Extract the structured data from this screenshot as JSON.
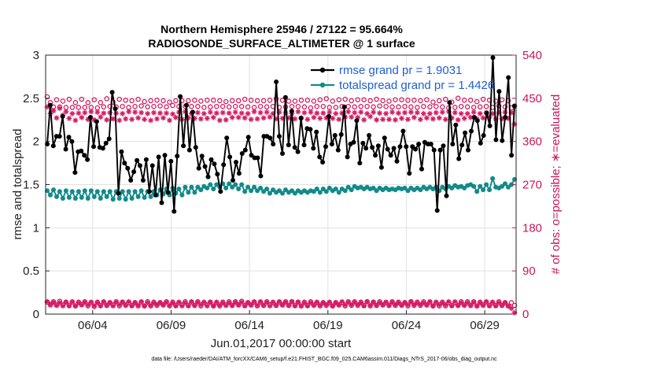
{
  "colors": {
    "rmse": "#000000",
    "spread": "#128a8a",
    "obs": "#d41d63",
    "legend_text": "#1f5fd0",
    "grid": "#e1e1e1",
    "right_axis": "#c8175d"
  },
  "chart_data": {
    "type": "line",
    "title": "Northern Hemisphere 25946 / 27122 = 95.664%",
    "subtitle": "RADIOSONDE_SURFACE_ALTIMETER @ 1 surface",
    "ylabel": "rmse and totalspread",
    "y2label": "# of obs: o=possible; ∗=evaluated",
    "xlabel": "Jun.01,2017 00:00:00 start",
    "ylim": [
      0,
      3
    ],
    "y2lim": [
      0,
      540
    ],
    "xlim": [
      1,
      31
    ],
    "yticks": [
      "0",
      "0.5",
      "1",
      "1.5",
      "2",
      "2.5",
      "3"
    ],
    "y2ticks": [
      "0",
      "90",
      "180",
      "270",
      "360",
      "450",
      "540"
    ],
    "xtick_labels": [
      "06/04",
      "06/09",
      "06/14",
      "06/19",
      "06/24",
      "06/29"
    ],
    "grid": true,
    "legend_position": "top-right",
    "legend": [
      "rmse grand pr = 1.9031",
      "totalspread grand pr = 1.4426"
    ],
    "footer": "data file: /Users/raeder/DAI/ATM_forcXX/CAM6_setup/f.e21.FHIST_BGC.f09_025.CAM6assim.011/Diags_NTrS_2017-06/obs_diag_output.nc",
    "series": [
      {
        "name": "rmse",
        "axis": "left",
        "values": [
          1.97,
          2.42,
          1.95,
          2.06,
          2.06,
          2.29,
          1.91,
          2.05,
          2.0,
          1.64,
          1.88,
          1.89,
          1.84,
          1.79,
          2.28,
          1.94,
          2.23,
          1.93,
          1.92,
          1.98,
          2.03,
          2.57,
          2.38,
          1.4,
          1.88,
          1.75,
          1.69,
          1.55,
          1.65,
          1.78,
          1.72,
          1.55,
          1.79,
          1.42,
          1.72,
          1.38,
          1.82,
          1.29,
          1.84,
          1.41,
          1.77,
          1.19,
          1.83,
          2.52,
          1.95,
          2.42,
          1.9,
          2.34,
          1.93,
          1.69,
          1.83,
          1.71,
          1.59,
          1.79,
          1.74,
          1.62,
          1.42,
          1.73,
          2.04,
          1.82,
          1.55,
          1.76,
          1.63,
          1.86,
          1.9,
          2.05,
          1.84,
          1.81,
          1.81,
          1.6,
          2.06,
          2.06,
          2.04,
          1.97,
          2.69,
          2.06,
          1.86,
          2.51,
          1.96,
          2.35,
          1.93,
          1.88,
          2.27,
          1.96,
          2.15,
          2.14,
          1.92,
          2.11,
          1.82,
          1.76,
          1.94,
          2.29,
          1.97,
          2.07,
          1.9,
          2.08,
          2.4,
          1.82,
          1.97,
          1.99,
          2.24,
          1.75,
          1.98,
          1.92,
          2.07,
          1.93,
          1.84,
          1.95,
          1.7,
          2.04,
          1.91,
          1.84,
          1.92,
          1.77,
          1.94,
          2.12,
          1.94,
          1.63,
          1.94,
          1.91,
          1.97,
          1.68,
          1.99,
          1.97,
          1.97,
          1.9,
          1.2,
          1.9,
          1.95,
          1.37,
          2.45,
          1.97,
          2.19,
          1.8,
          1.96,
          2.1,
          1.9,
          2.12,
          2.28,
          2.24,
          1.98,
          2.07,
          2.33,
          2.18,
          2.97,
          2.02,
          2.58,
          2.01,
          2.28,
          2.74,
          1.84,
          2.41
        ]
      },
      {
        "name": "totalspread",
        "axis": "left",
        "values": [
          1.43,
          1.38,
          1.44,
          1.36,
          1.42,
          1.34,
          1.43,
          1.35,
          1.42,
          1.34,
          1.42,
          1.35,
          1.43,
          1.34,
          1.43,
          1.36,
          1.42,
          1.34,
          1.42,
          1.36,
          1.42,
          1.33,
          1.42,
          1.34,
          1.42,
          1.33,
          1.42,
          1.34,
          1.42,
          1.36,
          1.43,
          1.35,
          1.42,
          1.36,
          1.42,
          1.38,
          1.44,
          1.39,
          1.45,
          1.38,
          1.46,
          1.4,
          1.45,
          1.38,
          1.47,
          1.41,
          1.47,
          1.41,
          1.47,
          1.44,
          1.48,
          1.46,
          1.5,
          1.45,
          1.5,
          1.47,
          1.51,
          1.46,
          1.51,
          1.47,
          1.5,
          1.45,
          1.5,
          1.42,
          1.47,
          1.43,
          1.47,
          1.43,
          1.46,
          1.42,
          1.45,
          1.4,
          1.44,
          1.41,
          1.43,
          1.4,
          1.44,
          1.41,
          1.43,
          1.4,
          1.43,
          1.41,
          1.43,
          1.41,
          1.43,
          1.42,
          1.45,
          1.41,
          1.45,
          1.42,
          1.46,
          1.43,
          1.45,
          1.41,
          1.45,
          1.43,
          1.47,
          1.44,
          1.48,
          1.46,
          1.47,
          1.45,
          1.47,
          1.45,
          1.46,
          1.43,
          1.46,
          1.44,
          1.46,
          1.44,
          1.45,
          1.44,
          1.46,
          1.45,
          1.46,
          1.43,
          1.46,
          1.44,
          1.46,
          1.44,
          1.47,
          1.45,
          1.47,
          1.45,
          1.47,
          1.43,
          1.47,
          1.45,
          1.48,
          1.46,
          1.49,
          1.47,
          1.48,
          1.46,
          1.49,
          1.5,
          1.48,
          1.42,
          1.48,
          1.44,
          1.5,
          1.44,
          1.57,
          1.47,
          1.46,
          1.48,
          1.51,
          1.47,
          1.5,
          1.56
        ]
      },
      {
        "name": "obs possible",
        "axis": "right",
        "values": [
          453,
          441,
          432,
          447,
          432,
          444,
          431,
          448,
          431,
          441,
          431,
          448,
          431,
          441,
          431,
          447,
          430,
          441,
          432,
          449,
          433,
          442,
          432,
          448,
          433,
          446,
          431,
          445,
          433,
          448,
          434,
          443,
          432,
          445,
          433,
          446,
          434,
          445,
          432,
          442,
          435,
          445,
          433,
          445,
          433,
          445,
          433,
          446,
          433,
          444,
          431,
          446,
          432,
          446,
          433,
          445,
          433,
          443,
          432,
          445,
          433,
          445,
          433,
          448,
          432,
          446,
          431,
          445,
          433,
          445,
          432,
          446,
          433,
          449,
          431,
          446,
          432,
          444,
          433,
          444,
          433,
          446,
          432,
          446,
          430,
          444,
          433,
          447,
          433,
          449,
          431,
          444,
          431,
          447,
          433,
          448,
          433,
          445,
          432,
          447,
          433,
          447,
          433,
          445,
          432,
          448,
          434,
          445,
          433,
          444,
          432,
          447,
          432,
          447,
          433,
          446,
          432,
          446,
          431,
          445,
          433,
          447,
          432,
          442,
          433,
          445,
          432,
          448,
          430,
          442,
          431,
          450,
          433,
          446,
          432,
          446,
          431,
          443,
          432,
          448,
          433,
          446,
          431,
          444,
          434,
          447,
          432,
          445,
          430,
          434
        ]
      },
      {
        "name": "obs evaluated",
        "axis": "right",
        "values": [
          432,
          418,
          424,
          409,
          429,
          415,
          422,
          408,
          418,
          404,
          419,
          410,
          420,
          406,
          422,
          405,
          421,
          411,
          419,
          405,
          420,
          407,
          419,
          404,
          418,
          407,
          422,
          406,
          421,
          409,
          420,
          406,
          418,
          404,
          420,
          407,
          419,
          409,
          419,
          404,
          417,
          410,
          421,
          406,
          422,
          409,
          418,
          408,
          420,
          407,
          418,
          408,
          421,
          410,
          419,
          404,
          420,
          405,
          419,
          410,
          421,
          410,
          419,
          409,
          418,
          406,
          422,
          407,
          420,
          409,
          421,
          411,
          418,
          407,
          421,
          408,
          420,
          409,
          418,
          407,
          422,
          409,
          420,
          406,
          421,
          410,
          419,
          408,
          419,
          409,
          421,
          408,
          418,
          406,
          419,
          411,
          422,
          411,
          420,
          410,
          421,
          405,
          418,
          412,
          421,
          405,
          419,
          406,
          418,
          406,
          421,
          405,
          419,
          408,
          420,
          406,
          421,
          410,
          420,
          406,
          418,
          409,
          418,
          407,
          420,
          409,
          421,
          406,
          422,
          409,
          420,
          405,
          418,
          408,
          418,
          410,
          421,
          407,
          418,
          409,
          420,
          411,
          418,
          407,
          420,
          407,
          421,
          408,
          420,
          396
        ]
      },
      {
        "name": "obs possible (low)",
        "axis": "right",
        "values": [
          25,
          19,
          26,
          19,
          27,
          19,
          25,
          18,
          25,
          17,
          25,
          20,
          26,
          17,
          24,
          16,
          25,
          18,
          25,
          18,
          24,
          19,
          26,
          17,
          25,
          19,
          24,
          18,
          24,
          17,
          25,
          17,
          26,
          17,
          25,
          18,
          24,
          19,
          26,
          17,
          25,
          18,
          24,
          19,
          26,
          18,
          25,
          18,
          26,
          17,
          24,
          19,
          25,
          17,
          24,
          17,
          25,
          19,
          26,
          18,
          26,
          19,
          27,
          18,
          24,
          19,
          25,
          17,
          25,
          18,
          26,
          19,
          24,
          18,
          25,
          19,
          26,
          18,
          26,
          18,
          25,
          17,
          25,
          18,
          26,
          19,
          24,
          17,
          24,
          18,
          24,
          17,
          24,
          19,
          24,
          17,
          26,
          18,
          26,
          18,
          25,
          18,
          26,
          17,
          25,
          18,
          26,
          19,
          24,
          18,
          26,
          18,
          25,
          19,
          24,
          17,
          26,
          18,
          25,
          18,
          26,
          19,
          25,
          17,
          24,
          17,
          25,
          17,
          24,
          18,
          24,
          18,
          26,
          19,
          26,
          18,
          26,
          17,
          25,
          19,
          25,
          18,
          24,
          18,
          26,
          18,
          24,
          17,
          24,
          18
        ]
      },
      {
        "name": "obs evaluated (low)",
        "axis": "right",
        "values": [
          26,
          20,
          25,
          18,
          24,
          17,
          25,
          17,
          26,
          17,
          24,
          19,
          25,
          19,
          25,
          17,
          24,
          17,
          26,
          18,
          24,
          17,
          25,
          19,
          25,
          18,
          26,
          17,
          24,
          18,
          26,
          17,
          24,
          18,
          24,
          19,
          24,
          19,
          25,
          18,
          24,
          17,
          25,
          17,
          24,
          17,
          26,
          18,
          25,
          19,
          25,
          17,
          25,
          17,
          25,
          18,
          24,
          18,
          24,
          18,
          25,
          19,
          25,
          17,
          24,
          19,
          26,
          18,
          26,
          18,
          25,
          17,
          25,
          18,
          26,
          19,
          25,
          18,
          26,
          17,
          25,
          17,
          24,
          17,
          24,
          18,
          25,
          18,
          24,
          19,
          25,
          17,
          24,
          19,
          26,
          19,
          25,
          19,
          25,
          19,
          24,
          17,
          26,
          18,
          25,
          18,
          24,
          19,
          25,
          18,
          25,
          19,
          24,
          18,
          24,
          19,
          26,
          19,
          24,
          19,
          24,
          19,
          26,
          17,
          25,
          19,
          24,
          19,
          26,
          17,
          26,
          18,
          24,
          18,
          24,
          18,
          25,
          17,
          24,
          18,
          26,
          17,
          25,
          17,
          24,
          18,
          24,
          17,
          12,
          3
        ]
      }
    ]
  }
}
